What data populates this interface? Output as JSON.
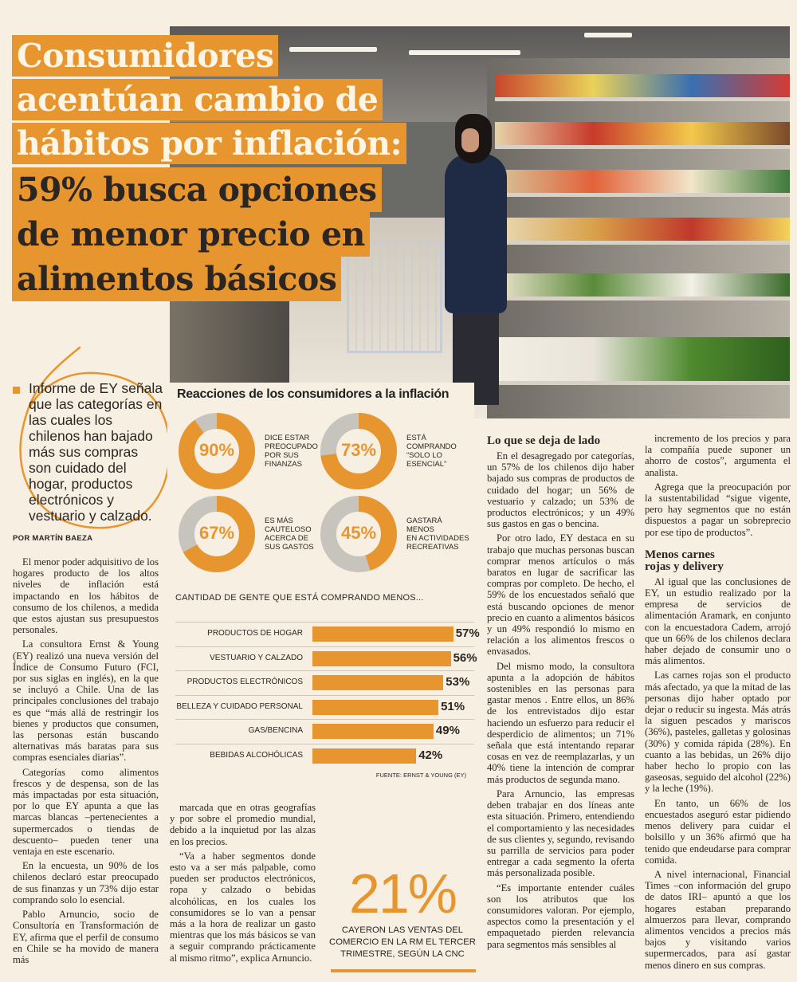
{
  "headline": {
    "line1": "Consumidores",
    "line2": "acentúan cambio de",
    "line3": "hábitos por inflación:",
    "line4": "59% busca opciones",
    "line5": "de menor precio en",
    "line6": "alimentos básicos"
  },
  "lead": "Informe de EY señala que las categorías en las cuales los chilenos han bajado más sus compras son cuidado del hogar, productos electrónicos y vestuario y calzado.",
  "byline": "POR MARTÍN BAEZA",
  "column1": {
    "paragraphs": [
      "El menor poder adquisitivo de los hogares producto de los altos niveles de inflación está impactando en los hábitos de consumo de los chilenos, a medida que estos ajustan sus presupuestos personales.",
      "La consultora Ernst & Young (EY) realizó una nueva versión del Índice de Consumo Futuro (FCI, por sus siglas en inglés), en la que se incluyó a Chile. Una de las principales conclusiones del trabajo es que “más allá de restringir los bienes y productos que consumen, las personas están buscando alternativas más baratas para sus compras esenciales diarias”.",
      "Categorías como alimentos frescos y de despensa, son de las más impactadas por esta situación, por lo que EY apunta a que las marcas blancas –pertenecientes a supermercados o tiendas de descuento– pueden tener una ventaja en este escenario.",
      "En la encuesta, un 90% de los chilenos declaró estar preocupado de sus finanzas y un 73% dijo estar comprando solo lo esencial.",
      "Pablo Arnuncio, socio de Consultoría en Transformación de EY, afirma que el perfil de consumo en Chile se ha movido de manera más"
    ]
  },
  "column2": {
    "paragraphs": [
      "marcada que en otras geografías y por sobre el promedio mundial, debido a la inquietud por las alzas en los precios.",
      "“Va a haber segmentos donde esto va a ser más palpable, como pueden ser productos electrónicos, ropa y calzado o bebidas alcohólicas, en los cuales los consumidores se lo van a pensar más a la hora de realizar un gasto mientras que los más básicos se van a seguir comprando prácticamente al mismo ritmo”, explica Arnuncio."
    ]
  },
  "column3": {
    "heading": "Lo que se deja de lado",
    "paragraphs": [
      "En el desagregado por categorías, un 57% de los chilenos dijo haber bajado sus compras de productos de cuidado del hogar; un 56% de vestuario y calzado; un 53% de productos electrónicos; y un 49% sus gastos en gas o bencina.",
      "Por otro lado, EY destaca en su trabajo que muchas personas buscan comprar menos artículos o más baratos en lugar de sacrificar las compras por completo. De hecho, el 59% de los encuestados señaló que está buscando opciones de menor precio en cuanto a alimentos básicos y un 49% respondió lo mismo en relación a los alimentos frescos o envasados.",
      "Del mismo modo, la consultora apunta a la adopción de hábitos sostenibles en las personas para gastar menos . Entre ellos, un 86% de los entrevistados dijo estar haciendo un esfuerzo para reducir el desperdicio de alimentos; un 71% señala que está intentando reparar cosas en vez de reemplazarlas, y un 40% tiene la intención de comprar más productos de segunda mano.",
      "Para Arnuncio, las empresas deben trabajar en dos líneas ante esta situación. Primero, entendiendo el comportamiento y las necesidades de sus clientes y, segundo, revisando su parrilla de servicios para poder entregar a cada segmento la oferta más personalizada posible.",
      "“Es importante entender cuáles son los atributos que los consumidores valoran. Por ejemplo, aspectos como la presentación y el empaquetado pierden relevancia para segmentos más sensibles al"
    ]
  },
  "column4": {
    "paragraphs_top": [
      "incremento de los precios y para la compañía puede suponer un ahorro de costos”, argumenta el analista.",
      "Agrega que la preocupación por la sustentabilidad “sigue vigente, pero hay segmentos que no están dispuestos a pagar un sobreprecio por ese tipo de productos”."
    ],
    "heading_line1": "Menos carnes",
    "heading_line2": "rojas y delivery",
    "paragraphs_bottom": [
      "Al igual que las conclusiones de EY, un estudio realizado por la empresa de servicios de alimentación Aramark, en conjunto con la encuestadora Cadem, arrojó que un 66% de los chilenos declara haber dejado de consumir uno o más alimentos.",
      "Las carnes rojas son el producto más afectado, ya que la mitad de las personas dijo haber optado por dejar o reducir su ingesta. Más atrás la siguen pescados y mariscos (36%), pasteles, galletas y golosinas (30%) y comida rápida (28%). En cuanto a las bebidas, un 26% dijo haber hecho lo propio con las gaseosas, seguido del alcohol (22%) y la leche (19%).",
      "En tanto, un 66% de los encuestados aseguró estar pidiendo menos delivery para cuidar el bolsillo y un 36% afirmó que ha tenido que endeudarse para comprar comida.",
      "A nivel internacional, Financial Times –con información del grupo de datos IRI– apuntó a que los hogares estaban preparando almuerzos para llevar, comprando alimentos vencidos a precios más bajos y visitando varios supermercados, para así gastar menos dinero en sus compras."
    ]
  },
  "chart_data": [
    {
      "type": "pie",
      "title": "Reacciones de los consumidores a la inflación",
      "slices": [
        {
          "value": 90,
          "display": "90%",
          "label_lines": [
            "DICE ESTAR",
            "PREOCUPADO",
            "POR SUS",
            "FINANZAS"
          ]
        },
        {
          "value": 73,
          "display": "73%",
          "label_lines": [
            "ESTÁ",
            "COMPRANDO",
            "“SOLO LO",
            "ESENCIAL”"
          ]
        },
        {
          "value": 67,
          "display": "67%",
          "label_lines": [
            "ES MÁS",
            "CAUTELOSO",
            "ACERCA DE",
            "SUS GASTOS"
          ]
        },
        {
          "value": 45,
          "display": "45%",
          "label_lines": [
            "GASTARÁ",
            "MENOS",
            "EN ACTIVIDADES",
            "RECREATIVAS"
          ]
        }
      ],
      "colors": {
        "filled": "#e7962f",
        "remainder": "#c7c3bd"
      }
    },
    {
      "type": "bar",
      "title": "CANTIDAD DE GENTE QUE ESTÁ COMPRANDO MENOS...",
      "categories": [
        "PRODUCTOS DE HOGAR",
        "VESTUARIO Y CALZADO",
        "PRODUCTOS ELECTRÓNICOS",
        "BELLEZA Y CUIDADO PERSONAL",
        "GAS/BENCINA",
        "BEBIDAS ALCOHÓLICAS"
      ],
      "values": [
        57,
        56,
        53,
        51,
        49,
        42
      ],
      "value_labels": [
        "57%",
        "56%",
        "53%",
        "51%",
        "49%",
        "42%"
      ],
      "color": "#e7962f",
      "source": "FUENTE: ERNST & YOUNG (EY)"
    }
  ],
  "callout": {
    "number": "21%",
    "text": "CAYERON LAS VENTAS DEL COMERCIO EN LA RM EL TERCER TRIMESTRE, SEGÚN LA CNC"
  },
  "colors": {
    "accent": "#e7962f",
    "paper": "#f6efe2",
    "ink": "#2b2622"
  }
}
